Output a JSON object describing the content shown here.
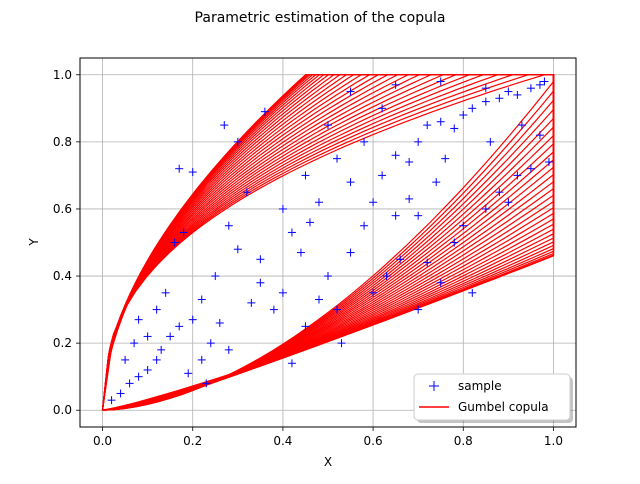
{
  "chart_data": {
    "type": "scatter",
    "title": "Parametric estimation of the copula",
    "xlabel": "X",
    "ylabel": "Y",
    "xlim": [
      -0.05,
      1.05
    ],
    "ylim": [
      -0.05,
      1.05
    ],
    "xticks": [
      "0.0",
      "0.2",
      "0.4",
      "0.6",
      "0.8",
      "1.0"
    ],
    "yticks": [
      "0.0",
      "0.2",
      "0.4",
      "0.6",
      "0.8",
      "1.0"
    ],
    "grid": true,
    "legend_position": "lower-right",
    "series": [
      {
        "name": "sample",
        "style": "plus-markers",
        "color": "#0000ff",
        "points": [
          [
            0.02,
            0.03
          ],
          [
            0.04,
            0.05
          ],
          [
            0.06,
            0.08
          ],
          [
            0.08,
            0.1
          ],
          [
            0.1,
            0.12
          ],
          [
            0.12,
            0.15
          ],
          [
            0.13,
            0.18
          ],
          [
            0.15,
            0.22
          ],
          [
            0.17,
            0.25
          ],
          [
            0.2,
            0.27
          ],
          [
            0.22,
            0.33
          ],
          [
            0.25,
            0.4
          ],
          [
            0.27,
            0.85
          ],
          [
            0.3,
            0.8
          ],
          [
            0.32,
            0.65
          ],
          [
            0.36,
            0.89
          ],
          [
            0.17,
            0.72
          ],
          [
            0.2,
            0.71
          ],
          [
            0.16,
            0.5
          ],
          [
            0.18,
            0.53
          ],
          [
            0.28,
            0.55
          ],
          [
            0.3,
            0.48
          ],
          [
            0.35,
            0.45
          ],
          [
            0.38,
            0.3
          ],
          [
            0.4,
            0.35
          ],
          [
            0.42,
            0.14
          ],
          [
            0.45,
            0.25
          ],
          [
            0.48,
            0.33
          ],
          [
            0.5,
            0.4
          ],
          [
            0.52,
            0.3
          ],
          [
            0.53,
            0.2
          ],
          [
            0.55,
            0.47
          ],
          [
            0.58,
            0.55
          ],
          [
            0.6,
            0.62
          ],
          [
            0.62,
            0.7
          ],
          [
            0.65,
            0.76
          ],
          [
            0.68,
            0.74
          ],
          [
            0.7,
            0.8
          ],
          [
            0.72,
            0.85
          ],
          [
            0.75,
            0.86
          ],
          [
            0.78,
            0.84
          ],
          [
            0.8,
            0.88
          ],
          [
            0.82,
            0.9
          ],
          [
            0.85,
            0.92
          ],
          [
            0.88,
            0.93
          ],
          [
            0.9,
            0.95
          ],
          [
            0.92,
            0.94
          ],
          [
            0.95,
            0.96
          ],
          [
            0.97,
            0.97
          ],
          [
            0.98,
            0.98
          ],
          [
            0.6,
            0.35
          ],
          [
            0.63,
            0.4
          ],
          [
            0.66,
            0.45
          ],
          [
            0.7,
            0.3
          ],
          [
            0.72,
            0.44
          ],
          [
            0.75,
            0.38
          ],
          [
            0.78,
            0.5
          ],
          [
            0.8,
            0.55
          ],
          [
            0.82,
            0.35
          ],
          [
            0.85,
            0.6
          ],
          [
            0.88,
            0.65
          ],
          [
            0.9,
            0.62
          ],
          [
            0.92,
            0.7
          ],
          [
            0.95,
            0.72
          ],
          [
            0.97,
            0.82
          ],
          [
            0.99,
            0.74
          ],
          [
            0.45,
            0.7
          ],
          [
            0.48,
            0.62
          ],
          [
            0.5,
            0.85
          ],
          [
            0.52,
            0.75
          ],
          [
            0.55,
            0.68
          ],
          [
            0.58,
            0.8
          ],
          [
            0.4,
            0.6
          ],
          [
            0.42,
            0.53
          ],
          [
            0.44,
            0.47
          ],
          [
            0.46,
            0.56
          ],
          [
            0.35,
            0.38
          ],
          [
            0.33,
            0.32
          ],
          [
            0.24,
            0.2
          ],
          [
            0.26,
            0.26
          ],
          [
            0.28,
            0.18
          ],
          [
            0.22,
            0.15
          ],
          [
            0.1,
            0.22
          ],
          [
            0.08,
            0.27
          ],
          [
            0.12,
            0.3
          ],
          [
            0.14,
            0.35
          ],
          [
            0.05,
            0.15
          ],
          [
            0.07,
            0.2
          ],
          [
            0.19,
            0.11
          ],
          [
            0.23,
            0.08
          ],
          [
            0.65,
            0.58
          ],
          [
            0.68,
            0.63
          ],
          [
            0.74,
            0.68
          ],
          [
            0.76,
            0.75
          ],
          [
            0.86,
            0.8
          ],
          [
            0.93,
            0.85
          ],
          [
            0.62,
            0.9
          ],
          [
            0.55,
            0.95
          ],
          [
            0.65,
            0.97
          ],
          [
            0.75,
            0.98
          ],
          [
            0.85,
            0.96
          ],
          [
            0.7,
            0.58
          ]
        ]
      },
      {
        "name": "Gumbel copula",
        "style": "contour-lines",
        "color": "#ff0000",
        "levels": [
          0.2,
          0.4,
          0.6,
          0.8,
          1.0,
          1.2,
          1.4,
          1.6,
          1.8,
          2.0,
          2.2,
          2.4,
          2.6,
          2.8,
          3.0,
          3.2,
          3.4,
          3.6,
          3.8,
          4.0,
          4.2,
          4.4,
          4.6,
          4.8,
          5.0,
          5.2,
          5.4,
          5.6,
          5.8,
          6.0
        ]
      }
    ]
  }
}
